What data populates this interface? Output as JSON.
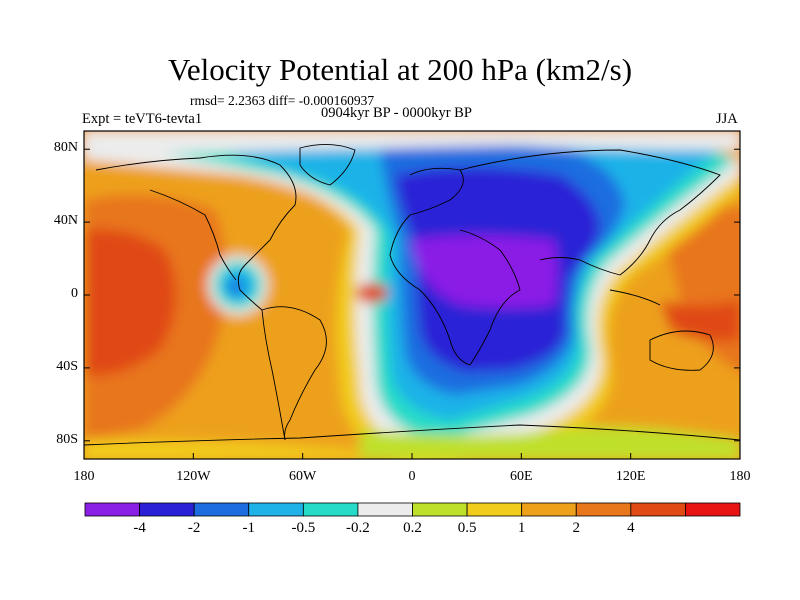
{
  "header": {
    "title": "Velocity Potential at 200 hPa (km2/s)",
    "stats": "rmsd= 2.2363  diff= -0.000160937",
    "experiment": "Expt = teVT6-tevta1",
    "period": "0904kyr BP - 0000kyr BP",
    "season": "JJA"
  },
  "map": {
    "x_range": [
      -180,
      180
    ],
    "y_range": [
      -90,
      90
    ],
    "y_ticks": [
      {
        "lat": 80,
        "label": "80N"
      },
      {
        "lat": 40,
        "label": "40N"
      },
      {
        "lat": 0,
        "label": "0"
      },
      {
        "lat": -40,
        "label": "40S"
      },
      {
        "lat": -80,
        "label": "80S"
      }
    ],
    "x_ticks": [
      {
        "lon": -180,
        "label": "180"
      },
      {
        "lon": -120,
        "label": "120W"
      },
      {
        "lon": -60,
        "label": "60W"
      },
      {
        "lon": 0,
        "label": "0"
      },
      {
        "lon": 60,
        "label": "60E"
      },
      {
        "lon": 120,
        "label": "120E"
      },
      {
        "lon": 180,
        "label": "180"
      }
    ],
    "field": {
      "description": "200 hPa velocity potential difference; strong negative centre over Africa/Arabia, positive over Pacific",
      "neg_centre": {
        "lon": 50,
        "lat": 15
      },
      "pos_centre_pacific": {
        "lon": -150,
        "lat": 5
      },
      "small_neg_cell": {
        "lon": -95,
        "lat": 5
      }
    }
  },
  "colorbar": {
    "colors": [
      "#8a1fe6",
      "#2b20d6",
      "#1d6de0",
      "#1fb2e8",
      "#26dcc8",
      "#ececec",
      "#bfe02a",
      "#f2cc1a",
      "#eda01a",
      "#e8761a",
      "#e04a14",
      "#e81414"
    ],
    "labels": [
      "-4",
      "-2",
      "-1",
      "-0.5",
      "-0.2",
      "0.2",
      "0.5",
      "1",
      "2",
      "4"
    ],
    "thresholds": [
      -4,
      -2,
      -1,
      -0.5,
      -0.2,
      0.2,
      0.5,
      1,
      2,
      4
    ]
  }
}
